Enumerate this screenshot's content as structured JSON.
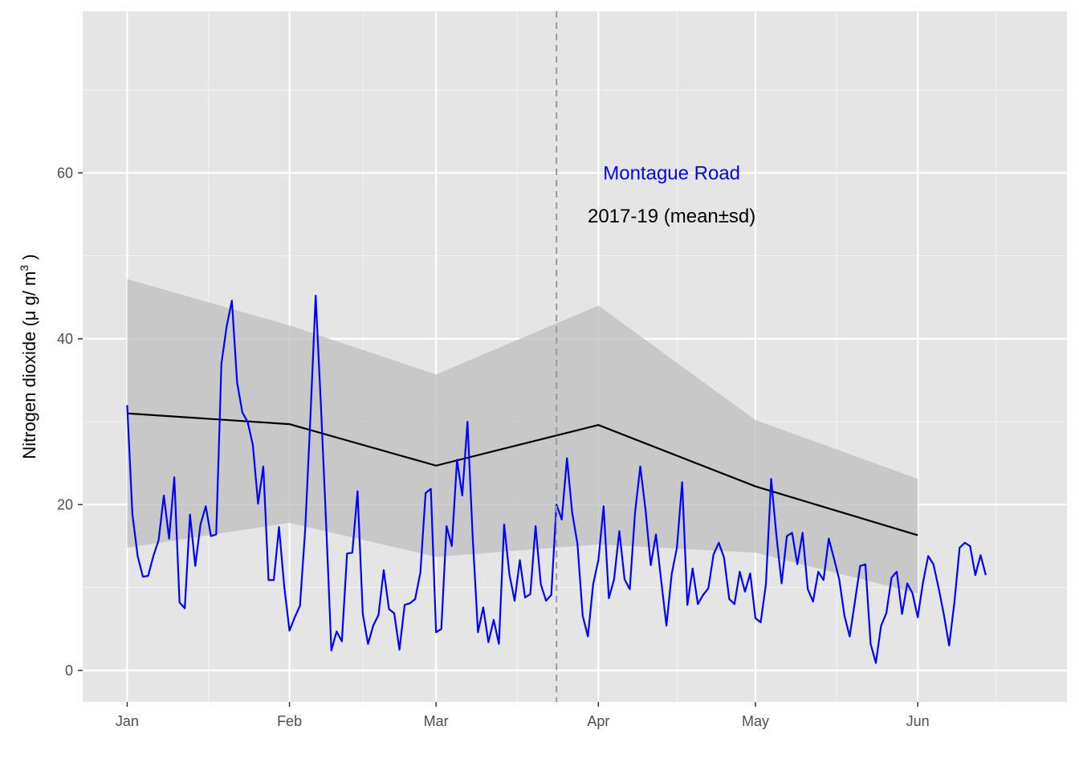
{
  "chart_data": {
    "type": "line",
    "title": "",
    "xlabel": "",
    "ylabel": {
      "main": "Nitrogen dioxide (",
      "mu": "μ",
      "unit": " g/ m",
      "sup": "3",
      "close": " )"
    },
    "x_ticks": [
      {
        "label": "Jan",
        "day": 1
      },
      {
        "label": "Feb",
        "day": 32
      },
      {
        "label": "Mar",
        "day": 60
      },
      {
        "label": "Apr",
        "day": 91
      },
      {
        "label": "May",
        "day": 121
      },
      {
        "label": "Jun",
        "day": 152
      }
    ],
    "x_minor_days": [
      16.5,
      46,
      75.5,
      106,
      136.5,
      167
    ],
    "y_ticks": [
      0,
      20,
      40,
      60
    ],
    "y_minor": [
      10,
      30,
      50,
      70
    ],
    "xlim": [
      -7.5,
      180.5
    ],
    "ylim": [
      -3.8,
      79.5
    ],
    "grid": true,
    "lockdown_marker_day": 83,
    "annotations": [
      {
        "text": "Montague Road",
        "day": 105,
        "value": 60,
        "color": "#0000ff"
      },
      {
        "text": "2017-19 (mean±sd)",
        "day": 105,
        "value": 54.8,
        "color": "#000000"
      }
    ],
    "baseline": {
      "name": "2017-19 (mean±sd)",
      "color": "#000000",
      "band_color": "#bebebe",
      "days": [
        1,
        32,
        60,
        91,
        121,
        152
      ],
      "mean": [
        31.0,
        29.7,
        24.7,
        29.6,
        22.2,
        16.3
      ],
      "lower": [
        14.8,
        17.8,
        13.7,
        15.2,
        14.2,
        9.3
      ],
      "upper": [
        47.2,
        41.6,
        35.7,
        44.0,
        30.2,
        23.1
      ]
    },
    "series": [
      {
        "name": "Montague Road",
        "color": "#0000ff",
        "start_date": "2020-01-01",
        "values": [
          32.0,
          18.8,
          13.8,
          11.3,
          11.4,
          13.8,
          15.7,
          21.1,
          15.9,
          23.3,
          8.2,
          7.5,
          18.8,
          12.6,
          17.6,
          19.8,
          16.2,
          16.4,
          37.0,
          41.5,
          44.6,
          34.7,
          31.1,
          30.0,
          27.2,
          20.1,
          24.6,
          10.9,
          10.9,
          17.3,
          10.1,
          4.8,
          6.4,
          7.8,
          17.0,
          30.6,
          45.2,
          32.0,
          17.7,
          2.4,
          4.7,
          3.5,
          14.1,
          14.2,
          21.6,
          6.8,
          3.2,
          5.4,
          6.7,
          12.1,
          7.4,
          6.9,
          2.5,
          7.9,
          8.1,
          8.6,
          11.8,
          21.4,
          21.9,
          4.6,
          5.0,
          17.4,
          15.0,
          25.4,
          21.1,
          30.0,
          16.0,
          4.6,
          7.6,
          3.4,
          6.1,
          3.2,
          17.6,
          11.6,
          8.4,
          13.3,
          8.8,
          9.2,
          17.4,
          10.4,
          8.4,
          9.1,
          20.0,
          18.2,
          25.6,
          19.0,
          15.3,
          6.6,
          4.1,
          10.4,
          13.3,
          19.8,
          8.7,
          11.0,
          16.8,
          11.0,
          9.8,
          19.0,
          24.6,
          19.4,
          12.7,
          16.4,
          10.8,
          5.4,
          11.6,
          14.8,
          22.7,
          7.9,
          12.3,
          8.0,
          9.1,
          9.9,
          14.0,
          15.4,
          13.6,
          8.6,
          8.0,
          11.9,
          9.5,
          11.7,
          6.3,
          5.8,
          10.4,
          23.1,
          16.3,
          10.5,
          16.2,
          16.6,
          12.8,
          16.6,
          9.8,
          8.3,
          11.9,
          10.9,
          15.9,
          13.5,
          11.0,
          6.6,
          4.1,
          8.3,
          12.6,
          12.8,
          3.2,
          0.9,
          5.4,
          6.9,
          11.2,
          11.9,
          6.8,
          10.5,
          9.3,
          6.4,
          10.6,
          13.8,
          12.8,
          9.9,
          6.7,
          3.0,
          8.2,
          14.8,
          15.4,
          15.0,
          11.5,
          13.9,
          11.5
        ]
      }
    ]
  }
}
